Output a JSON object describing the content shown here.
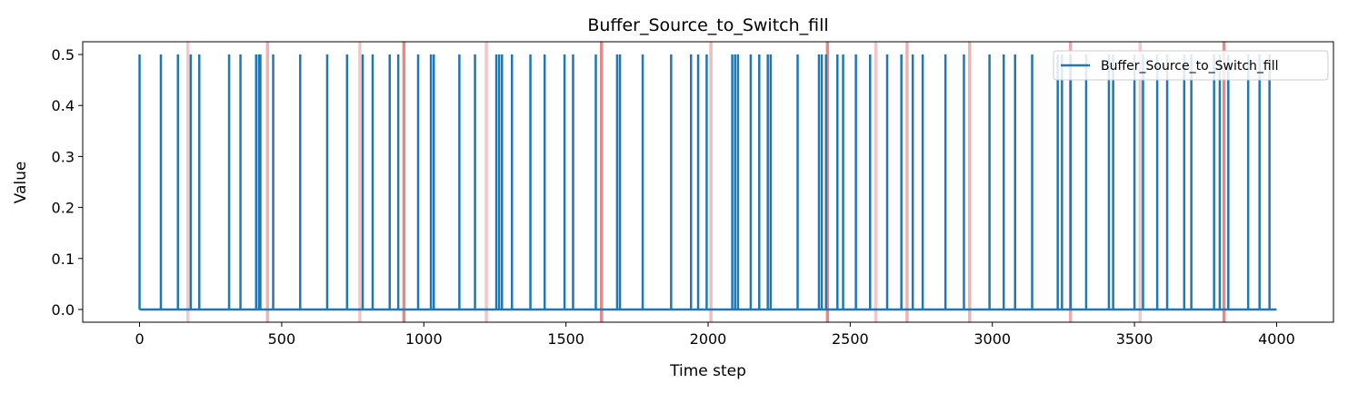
{
  "chart_data": {
    "type": "line",
    "title": "Buffer_Source_to_Switch_fill",
    "xlabel": "Time step",
    "ylabel": "Value",
    "xlim": [
      -200,
      4200
    ],
    "ylim": [
      -0.025,
      0.525
    ],
    "xticks": [
      0,
      500,
      1000,
      1500,
      2000,
      2500,
      3000,
      3500,
      4000
    ],
    "xtick_labels": [
      "0",
      "500",
      "1000",
      "1500",
      "2000",
      "2500",
      "3000",
      "3500",
      "4000"
    ],
    "yticks": [
      0.0,
      0.1,
      0.2,
      0.3,
      0.4,
      0.5
    ],
    "ytick_labels": [
      "0.0",
      "0.1",
      "0.2",
      "0.3",
      "0.4",
      "0.5"
    ],
    "grid": false,
    "legend_position": "upper right",
    "series": [
      {
        "name": "Buffer_Source_to_Switch_fill",
        "color": "#1f77b4",
        "baseline": 0.0,
        "spike_value": 0.5,
        "x_range": [
          0,
          4000
        ],
        "spike_x": [
          0,
          75,
          135,
          180,
          210,
          315,
          355,
          410,
          420,
          425,
          470,
          565,
          660,
          730,
          785,
          820,
          880,
          910,
          980,
          1025,
          1035,
          1125,
          1180,
          1255,
          1265,
          1275,
          1310,
          1375,
          1425,
          1495,
          1525,
          1605,
          1680,
          1690,
          1770,
          1870,
          1940,
          1965,
          1995,
          2085,
          2095,
          2105,
          2150,
          2180,
          2210,
          2220,
          2315,
          2390,
          2400,
          2415,
          2455,
          2475,
          2520,
          2570,
          2630,
          2680,
          2720,
          2755,
          2835,
          2900,
          2990,
          3040,
          3080,
          3140,
          3230,
          3245,
          3275,
          3330,
          3410,
          3425,
          3500,
          3530,
          3580,
          3615,
          3675,
          3700,
          3780,
          3800,
          3830,
          3900,
          3940,
          3975
        ]
      }
    ],
    "vertical_bands": {
      "color": "#e06060",
      "lines": [
        {
          "x": 170,
          "strength": 0.25
        },
        {
          "x": 450,
          "strength": 0.5
        },
        {
          "x": 775,
          "strength": 0.3
        },
        {
          "x": 930,
          "strength": 1.0
        },
        {
          "x": 1220,
          "strength": 0.3
        },
        {
          "x": 1625,
          "strength": 1.0
        },
        {
          "x": 2010,
          "strength": 0.4
        },
        {
          "x": 2420,
          "strength": 1.0
        },
        {
          "x": 2590,
          "strength": 0.3
        },
        {
          "x": 2700,
          "strength": 0.5
        },
        {
          "x": 2920,
          "strength": 0.5
        },
        {
          "x": 3275,
          "strength": 0.6
        },
        {
          "x": 3520,
          "strength": 0.25
        },
        {
          "x": 3815,
          "strength": 1.0
        }
      ]
    }
  }
}
